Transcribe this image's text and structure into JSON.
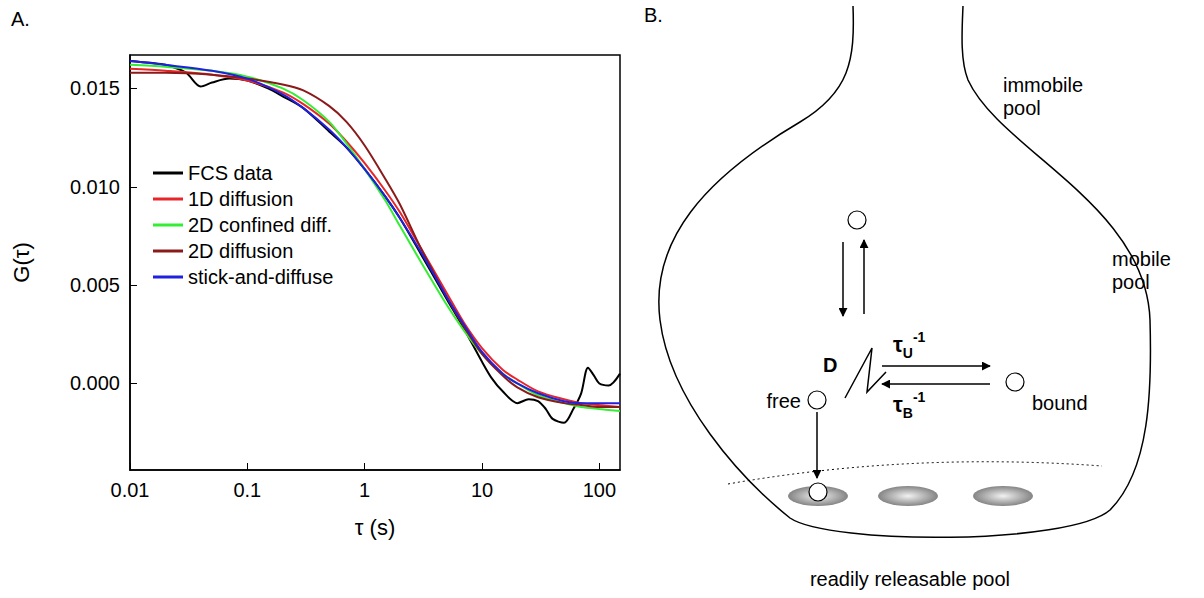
{
  "chart_data": {
    "type": "line",
    "title": "A.",
    "x_label": "τ (s)",
    "y_label": "G(τ)",
    "log": "x",
    "grid": false,
    "legend": "left",
    "xlim": [
      0.01,
      150
    ],
    "xticks": [
      0.01,
      0.1,
      1,
      10,
      100
    ],
    "ylim": [
      -0.0044,
      0.0167
    ],
    "yticks": [
      {
        "value": 0,
        "label": "0.000"
      },
      {
        "value": 0.005,
        "label": "0.005"
      },
      {
        "value": 0.01,
        "label": "0.010"
      },
      {
        "value": 0.015,
        "label": "0.015"
      }
    ],
    "series": [
      {
        "name": "FCS data",
        "color": "#000000",
        "x": [
          0.01,
          0.015,
          0.02,
          0.03,
          0.04,
          0.05,
          0.07,
          0.1,
          0.15,
          0.2,
          0.3,
          0.5,
          0.7,
          1,
          1.5,
          2,
          3,
          5,
          7,
          10,
          12,
          15,
          20,
          25,
          30,
          35,
          40,
          50,
          60,
          70,
          80,
          90,
          100,
          120,
          150
        ],
        "values": [
          0.0164,
          0.0163,
          0.0162,
          0.0158,
          0.0151,
          0.0153,
          0.0155,
          0.0154,
          0.015,
          0.0146,
          0.014,
          0.0128,
          0.012,
          0.0109,
          0.0095,
          0.0084,
          0.0066,
          0.0043,
          0.0028,
          0.0011,
          0.0003,
          -0.0004,
          -0.001,
          -0.0008,
          -0.0009,
          -0.0013,
          -0.0018,
          -0.002,
          -0.0013,
          -0.0005,
          0.0008,
          0.0004,
          0.0,
          -0.0001,
          0.0005
        ]
      },
      {
        "name": "1D diffusion",
        "color": "#e8262a",
        "x": [
          0.01,
          0.02,
          0.05,
          0.1,
          0.2,
          0.3,
          0.5,
          0.7,
          1,
          1.5,
          2,
          3,
          5,
          7,
          10,
          15,
          20,
          30,
          50,
          70,
          100,
          150
        ],
        "values": [
          0.016,
          0.0159,
          0.0157,
          0.0154,
          0.0148,
          0.0142,
          0.0132,
          0.0123,
          0.0112,
          0.0098,
          0.0087,
          0.0069,
          0.0046,
          0.0031,
          0.0018,
          0.0007,
          0.0002,
          -0.0004,
          -0.0008,
          -0.001,
          -0.0011,
          -0.0012
        ]
      },
      {
        "name": "2D confined diff.",
        "color": "#33ee33",
        "x": [
          0.01,
          0.02,
          0.05,
          0.1,
          0.2,
          0.3,
          0.5,
          0.7,
          1,
          1.5,
          2,
          3,
          5,
          7,
          10,
          15,
          20,
          30,
          50,
          70,
          100,
          150
        ],
        "values": [
          0.0162,
          0.0161,
          0.0159,
          0.0156,
          0.015,
          0.0144,
          0.0133,
          0.0122,
          0.0109,
          0.0093,
          0.008,
          0.0062,
          0.004,
          0.0027,
          0.0015,
          0.0005,
          0.0,
          -0.0006,
          -0.001,
          -0.0012,
          -0.0013,
          -0.0014
        ]
      },
      {
        "name": "2D diffusion",
        "color": "#8b1a1a",
        "x": [
          0.01,
          0.02,
          0.05,
          0.1,
          0.2,
          0.3,
          0.5,
          0.7,
          1,
          1.5,
          2,
          3,
          5,
          7,
          10,
          15,
          20,
          30,
          50,
          70,
          100,
          150
        ],
        "values": [
          0.0158,
          0.0158,
          0.0157,
          0.0155,
          0.0152,
          0.0149,
          0.0141,
          0.0133,
          0.0121,
          0.0104,
          0.0091,
          0.0069,
          0.0044,
          0.0029,
          0.0015,
          0.0004,
          -0.0002,
          -0.0007,
          -0.001,
          -0.0011,
          -0.0012,
          -0.0012
        ]
      },
      {
        "name": "stick-and-diffuse",
        "color": "#2020e0",
        "x": [
          0.01,
          0.02,
          0.05,
          0.1,
          0.2,
          0.3,
          0.5,
          0.7,
          1,
          1.5,
          2,
          3,
          5,
          7,
          10,
          15,
          20,
          30,
          50,
          70,
          100,
          150
        ],
        "values": [
          0.0164,
          0.0162,
          0.0159,
          0.0155,
          0.0147,
          0.014,
          0.0129,
          0.012,
          0.0109,
          0.0095,
          0.0084,
          0.0067,
          0.0044,
          0.003,
          0.0016,
          0.0005,
          0.0,
          -0.0005,
          -0.0009,
          -0.001,
          -0.001,
          -0.001
        ]
      }
    ]
  },
  "diagram": {
    "panel": "B.",
    "labels": {
      "immobile": "immobile pool",
      "mobile": "mobile pool",
      "free": "free",
      "bound": "bound",
      "diffusion": "D",
      "rate_to_bound": {
        "base": "τ",
        "sub": "U",
        "sup": "-1"
      },
      "rate_to_free": {
        "base": "τ",
        "sub": "B",
        "sup": "-1"
      },
      "releasable": "readily releasable pool"
    }
  }
}
